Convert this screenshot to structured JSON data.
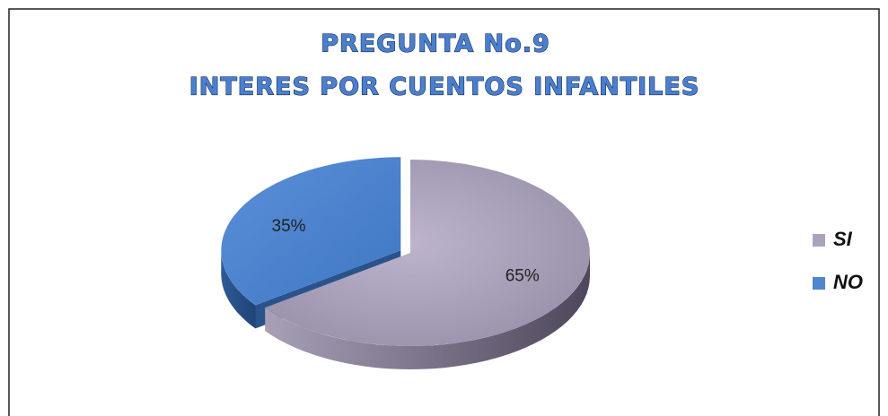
{
  "chart_data": {
    "type": "pie",
    "title": "PREGUNTA No.9",
    "subtitle": "INTERES POR CUENTOS INFANTILES",
    "categories": [
      "SI",
      "NO"
    ],
    "values": [
      65,
      35
    ],
    "value_labels": [
      "65%",
      "35%"
    ],
    "colors": [
      "#aca3bb",
      "#4f86cf"
    ],
    "legend": "right"
  }
}
